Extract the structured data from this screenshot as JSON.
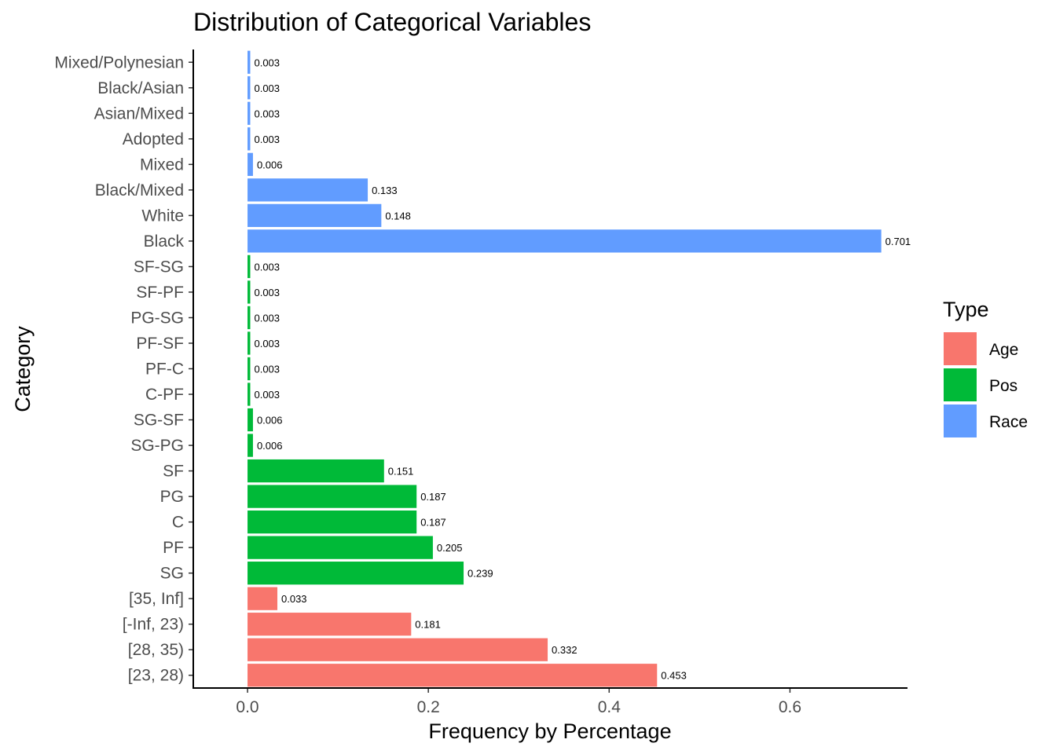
{
  "chart_data": {
    "type": "bar",
    "orientation": "horizontal",
    "title": "Distribution of Categorical Variables",
    "xlabel": "Frequency by Percentage",
    "ylabel": "Category",
    "xlim": [
      -0.06,
      0.73
    ],
    "xticks": [
      0.0,
      0.2,
      0.4,
      0.6
    ],
    "xtick_labels": [
      "0.0",
      "0.2",
      "0.4",
      "0.6"
    ],
    "grid": false,
    "legend": {
      "title": "Type",
      "position": "right",
      "entries": [
        {
          "name": "Age",
          "color": "#F8766D"
        },
        {
          "name": "Pos",
          "color": "#00BA38"
        },
        {
          "name": "Race",
          "color": "#619CFF"
        }
      ]
    },
    "bars": [
      {
        "category": "Mixed/Polynesian",
        "value": 0.003,
        "label": "0.003",
        "type": "Race"
      },
      {
        "category": "Black/Asian",
        "value": 0.003,
        "label": "0.003",
        "type": "Race"
      },
      {
        "category": "Asian/Mixed",
        "value": 0.003,
        "label": "0.003",
        "type": "Race"
      },
      {
        "category": "Adopted",
        "value": 0.003,
        "label": "0.003",
        "type": "Race"
      },
      {
        "category": "Mixed",
        "value": 0.006,
        "label": "0.006",
        "type": "Race"
      },
      {
        "category": "Black/Mixed",
        "value": 0.133,
        "label": "0.133",
        "type": "Race"
      },
      {
        "category": "White",
        "value": 0.148,
        "label": "0.148",
        "type": "Race"
      },
      {
        "category": "Black",
        "value": 0.701,
        "label": "0.701",
        "type": "Race"
      },
      {
        "category": "SF-SG",
        "value": 0.003,
        "label": "0.003",
        "type": "Pos"
      },
      {
        "category": "SF-PF",
        "value": 0.003,
        "label": "0.003",
        "type": "Pos"
      },
      {
        "category": "PG-SG",
        "value": 0.003,
        "label": "0.003",
        "type": "Pos"
      },
      {
        "category": "PF-SF",
        "value": 0.003,
        "label": "0.003",
        "type": "Pos"
      },
      {
        "category": "PF-C",
        "value": 0.003,
        "label": "0.003",
        "type": "Pos"
      },
      {
        "category": "C-PF",
        "value": 0.003,
        "label": "0.003",
        "type": "Pos"
      },
      {
        "category": "SG-SF",
        "value": 0.006,
        "label": "0.006",
        "type": "Pos"
      },
      {
        "category": "SG-PG",
        "value": 0.006,
        "label": "0.006",
        "type": "Pos"
      },
      {
        "category": "SF",
        "value": 0.151,
        "label": "0.151",
        "type": "Pos"
      },
      {
        "category": "PG",
        "value": 0.187,
        "label": "0.187",
        "type": "Pos"
      },
      {
        "category": "C",
        "value": 0.187,
        "label": "0.187",
        "type": "Pos"
      },
      {
        "category": "PF",
        "value": 0.205,
        "label": "0.205",
        "type": "Pos"
      },
      {
        "category": "SG",
        "value": 0.239,
        "label": "0.239",
        "type": "Pos"
      },
      {
        "category": "[35, Inf]",
        "value": 0.033,
        "label": "0.033",
        "type": "Age"
      },
      {
        "category": "[-Inf, 23)",
        "value": 0.181,
        "label": "0.181",
        "type": "Age"
      },
      {
        "category": "[28, 35)",
        "value": 0.332,
        "label": "0.332",
        "type": "Age"
      },
      {
        "category": "[23, 28)",
        "value": 0.453,
        "label": "0.453",
        "type": "Age"
      }
    ]
  }
}
